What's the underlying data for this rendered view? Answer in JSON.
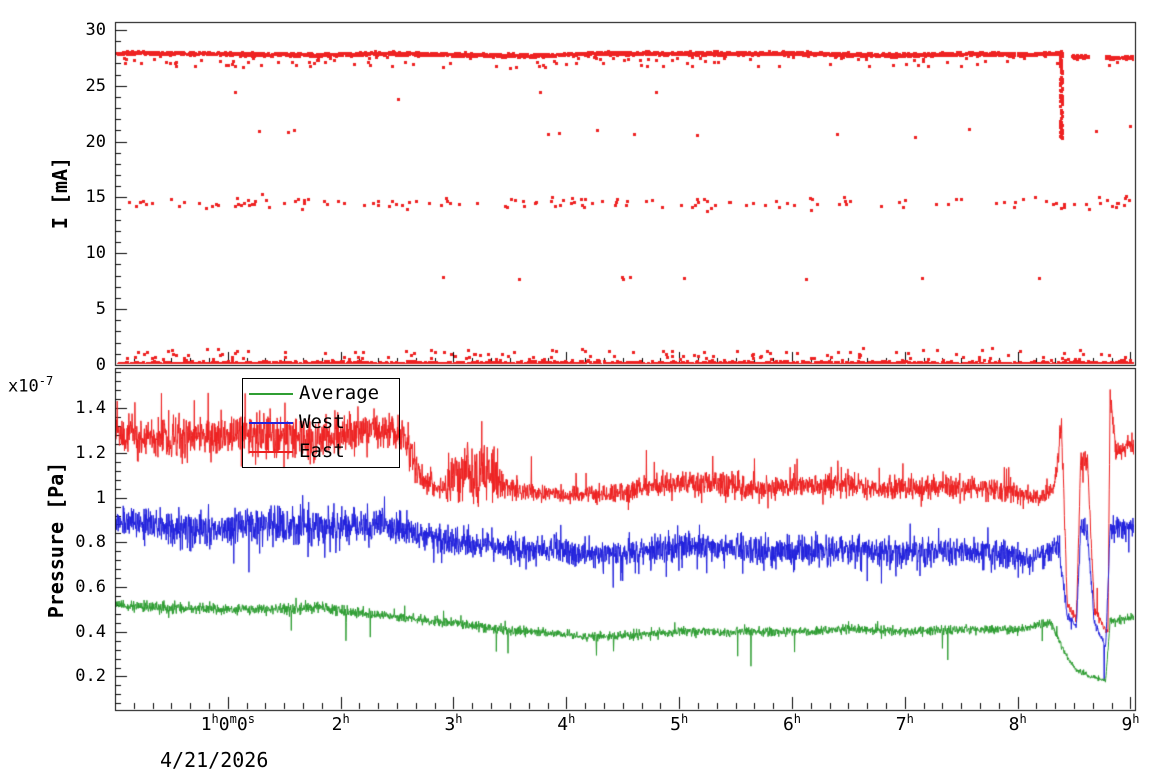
{
  "figure": {
    "bg": "#ffffff",
    "date_label": "4/21/2026"
  },
  "chart_data": [
    {
      "type": "scatter",
      "panel": "top",
      "title": "",
      "ylabel": "I [mA]",
      "ylim": [
        0,
        30.7
      ],
      "xlim": [
        0,
        9.04
      ],
      "yticks": [
        0,
        5,
        10,
        15,
        20,
        25,
        30
      ],
      "ytick_labels": [
        "0",
        "5",
        "10",
        "15",
        "20",
        "25",
        "30"
      ],
      "marker_color": "#ee2222",
      "series": [
        {
          "name": "beam-current-band",
          "kind": "band",
          "t0": 0.02,
          "t1": 8.38,
          "rate": 300,
          "noise": 0.12,
          "outlier_frac": 0.06,
          "outlier_drop": 1.2,
          "keypoints": [
            [
              0,
              27.95
            ],
            [
              1.9,
              27.78
            ],
            [
              2.3,
              27.92
            ],
            [
              3.7,
              27.7
            ],
            [
              4.2,
              27.9
            ],
            [
              6,
              27.9
            ],
            [
              6.9,
              27.75
            ],
            [
              7.6,
              27.88
            ],
            [
              8.1,
              27.8
            ],
            [
              8.38,
              27.95
            ]
          ]
        },
        {
          "name": "post-dump-band-1",
          "kind": "band",
          "t0": 8.47,
          "t1": 8.63,
          "rate": 280,
          "noise": 0.1,
          "outlier_frac": 0.03,
          "outlier_drop": 0.5,
          "keypoints": [
            [
              8.47,
              27.6
            ],
            [
              8.63,
              27.6
            ]
          ]
        },
        {
          "name": "post-dump-band-2",
          "kind": "band",
          "t0": 8.78,
          "t1": 9.03,
          "rate": 300,
          "noise": 0.12,
          "outlier_frac": 0.05,
          "outlier_drop": 0.8,
          "keypoints": [
            [
              8.78,
              27.5
            ],
            [
              9.03,
              27.55
            ]
          ]
        },
        {
          "name": "zero-line",
          "kind": "zero",
          "t0": 0.02,
          "t1": 9.04,
          "rate": 230,
          "noise": 0.11,
          "outlier_frac": 0.08,
          "outlier_rise": 1.2
        },
        {
          "name": "zero-line-beam-off",
          "kind": "zero",
          "t0": 8.39,
          "t1": 9.04,
          "rate": 2600,
          "noise": 0.05,
          "outlier_frac": 0.01,
          "outlier_rise": 0.5
        },
        {
          "name": "partial-current-15mA",
          "kind": "cluster",
          "y": 14.5,
          "spread": 0.55,
          "count": 150,
          "t0": 0.05,
          "t1": 9.0
        },
        {
          "name": "partial-current-21mA",
          "kind": "cluster",
          "y": 20.8,
          "spread": 0.4,
          "count": 13,
          "t0": 0.3,
          "t1": 9.0
        },
        {
          "name": "partial-current-8mA",
          "kind": "cluster",
          "y": 7.8,
          "spread": 0.3,
          "count": 9,
          "t0": 1.8,
          "t1": 8.3
        },
        {
          "name": "partial-current-24mA",
          "kind": "cluster",
          "y": 24.2,
          "spread": 0.8,
          "count": 4,
          "t0": 0.5,
          "t1": 5.0
        },
        {
          "name": "beam-dump-drop",
          "kind": "drop",
          "t": 8.385,
          "y_top": 28.1,
          "y_bottom": 20.3,
          "count": 80,
          "jitter": 0.012
        }
      ]
    },
    {
      "type": "line",
      "panel": "bottom",
      "title": "",
      "ylabel": "Pressure [Pa]",
      "scale_label": {
        "base": "x10",
        "exp": "-7"
      },
      "ylim": [
        0.05,
        1.58
      ],
      "xlim": [
        0,
        9.04
      ],
      "yticks": [
        0.2,
        0.4,
        0.6,
        0.8,
        1,
        1.2,
        1.4
      ],
      "ytick_labels": [
        "0.2",
        "0.4",
        "0.6",
        "0.8",
        "1",
        "1.2",
        "1.4"
      ],
      "xticks": [
        {
          "v": 1,
          "parts": [
            [
              "1",
              "h"
            ],
            [
              "0",
              "m"
            ],
            [
              "0",
              "s"
            ]
          ]
        },
        {
          "v": 2,
          "parts": [
            [
              "2",
              "h"
            ]
          ]
        },
        {
          "v": 3,
          "parts": [
            [
              "3",
              "h"
            ]
          ]
        },
        {
          "v": 4,
          "parts": [
            [
              "4",
              "h"
            ]
          ]
        },
        {
          "v": 5,
          "parts": [
            [
              "5",
              "h"
            ]
          ]
        },
        {
          "v": 6,
          "parts": [
            [
              "6",
              "h"
            ]
          ]
        },
        {
          "v": 7,
          "parts": [
            [
              "7",
              "h"
            ]
          ]
        },
        {
          "v": 8,
          "parts": [
            [
              "8",
              "h"
            ]
          ]
        },
        {
          "v": 9,
          "parts": [
            [
              "9",
              "h"
            ]
          ]
        }
      ],
      "legend": {
        "position": "top-left",
        "entries": [
          {
            "label": "Average",
            "color": "#2f9e33"
          },
          {
            "label": "West",
            "color": "#2222dd"
          },
          {
            "label": "East",
            "color": "#ee2222"
          }
        ]
      },
      "series": [
        {
          "name": "East",
          "color": "#ee2222",
          "spikes": {
            "prob": 0.005,
            "dir": 1,
            "max": 0.16
          },
          "keypoints": [
            [
              0,
              1.3,
              0.07
            ],
            [
              0.3,
              1.26,
              0.09
            ],
            [
              0.8,
              1.27,
              0.09
            ],
            [
              1.3,
              1.28,
              0.09
            ],
            [
              1.8,
              1.26,
              0.09
            ],
            [
              2.2,
              1.29,
              0.08
            ],
            [
              2.45,
              1.31,
              0.08
            ],
            [
              2.6,
              1.24,
              0.08
            ],
            [
              2.72,
              1.07,
              0.05
            ],
            [
              2.9,
              1.04,
              0.04
            ],
            [
              3.0,
              1.1,
              0.11
            ],
            [
              3.2,
              1.09,
              0.13
            ],
            [
              3.35,
              1.12,
              0.12
            ],
            [
              3.45,
              1.05,
              0.06
            ],
            [
              3.6,
              1.03,
              0.04
            ],
            [
              4.0,
              1.01,
              0.035
            ],
            [
              4.4,
              1.02,
              0.04
            ],
            [
              4.8,
              1.05,
              0.045
            ],
            [
              5.1,
              1.07,
              0.05
            ],
            [
              5.4,
              1.06,
              0.06
            ],
            [
              5.7,
              1.04,
              0.05
            ],
            [
              6.0,
              1.05,
              0.05
            ],
            [
              6.4,
              1.06,
              0.05
            ],
            [
              6.8,
              1.04,
              0.045
            ],
            [
              7.2,
              1.05,
              0.05
            ],
            [
              7.6,
              1.05,
              0.05
            ],
            [
              8.0,
              1.02,
              0.045
            ],
            [
              8.2,
              0.99,
              0.04
            ],
            [
              8.33,
              1.05,
              0.05
            ],
            [
              8.39,
              1.32,
              0.09
            ],
            [
              8.44,
              0.52,
              0.025
            ],
            [
              8.52,
              0.46,
              0.015
            ],
            [
              8.56,
              1.18,
              0.05
            ],
            [
              8.62,
              1.15,
              0.05
            ],
            [
              8.68,
              0.5,
              0.02
            ],
            [
              8.76,
              0.42,
              0.015
            ],
            [
              8.8,
              0.4,
              0.01
            ],
            [
              8.82,
              1.46,
              0.08
            ],
            [
              8.87,
              1.22,
              0.05
            ],
            [
              9.04,
              1.24,
              0.05
            ]
          ]
        },
        {
          "name": "West",
          "color": "#2222dd",
          "spikes": {
            "prob": 0.005,
            "dir": -1,
            "max": 0.18
          },
          "keypoints": [
            [
              0,
              0.9,
              0.06
            ],
            [
              0.4,
              0.87,
              0.07
            ],
            [
              0.9,
              0.86,
              0.07
            ],
            [
              1.4,
              0.88,
              0.07
            ],
            [
              1.9,
              0.87,
              0.07
            ],
            [
              2.4,
              0.88,
              0.07
            ],
            [
              2.7,
              0.84,
              0.06
            ],
            [
              3.0,
              0.8,
              0.06
            ],
            [
              3.4,
              0.78,
              0.06
            ],
            [
              3.8,
              0.76,
              0.06
            ],
            [
              4.2,
              0.75,
              0.06
            ],
            [
              4.6,
              0.75,
              0.06
            ],
            [
              5.0,
              0.78,
              0.065
            ],
            [
              5.4,
              0.77,
              0.06
            ],
            [
              5.8,
              0.76,
              0.06
            ],
            [
              6.2,
              0.77,
              0.06
            ],
            [
              6.6,
              0.76,
              0.06
            ],
            [
              7.0,
              0.75,
              0.06
            ],
            [
              7.4,
              0.76,
              0.06
            ],
            [
              7.8,
              0.75,
              0.06
            ],
            [
              8.1,
              0.73,
              0.05
            ],
            [
              8.25,
              0.74,
              0.05
            ],
            [
              8.36,
              0.8,
              0.06
            ],
            [
              8.44,
              0.47,
              0.02
            ],
            [
              8.52,
              0.43,
              0.015
            ],
            [
              8.56,
              0.86,
              0.05
            ],
            [
              8.62,
              0.84,
              0.05
            ],
            [
              8.68,
              0.44,
              0.02
            ],
            [
              8.78,
              0.33,
              0.01
            ],
            [
              8.82,
              0.86,
              0.05
            ],
            [
              9.04,
              0.87,
              0.05
            ]
          ]
        },
        {
          "name": "Average",
          "color": "#2f9e33",
          "spikes": {
            "prob": 0.004,
            "dir": -1,
            "max": 0.16
          },
          "keypoints": [
            [
              0,
              0.52,
              0.02
            ],
            [
              0.4,
              0.51,
              0.025
            ],
            [
              0.9,
              0.5,
              0.02
            ],
            [
              1.4,
              0.5,
              0.022
            ],
            [
              1.8,
              0.51,
              0.025
            ],
            [
              2.2,
              0.48,
              0.02
            ],
            [
              2.6,
              0.46,
              0.02
            ],
            [
              3.0,
              0.44,
              0.02
            ],
            [
              3.4,
              0.41,
              0.02
            ],
            [
              3.8,
              0.395,
              0.018
            ],
            [
              4.2,
              0.38,
              0.018
            ],
            [
              4.6,
              0.385,
              0.018
            ],
            [
              5.0,
              0.4,
              0.018
            ],
            [
              5.5,
              0.4,
              0.018
            ],
            [
              6.0,
              0.4,
              0.018
            ],
            [
              6.5,
              0.41,
              0.018
            ],
            [
              7.0,
              0.4,
              0.018
            ],
            [
              7.5,
              0.41,
              0.018
            ],
            [
              8.0,
              0.41,
              0.018
            ],
            [
              8.3,
              0.44,
              0.02
            ],
            [
              8.42,
              0.3,
              0.012
            ],
            [
              8.52,
              0.23,
              0.01
            ],
            [
              8.65,
              0.2,
              0.01
            ],
            [
              8.78,
              0.18,
              0.008
            ],
            [
              8.82,
              0.45,
              0.02
            ],
            [
              9.04,
              0.46,
              0.02
            ]
          ]
        }
      ]
    }
  ]
}
